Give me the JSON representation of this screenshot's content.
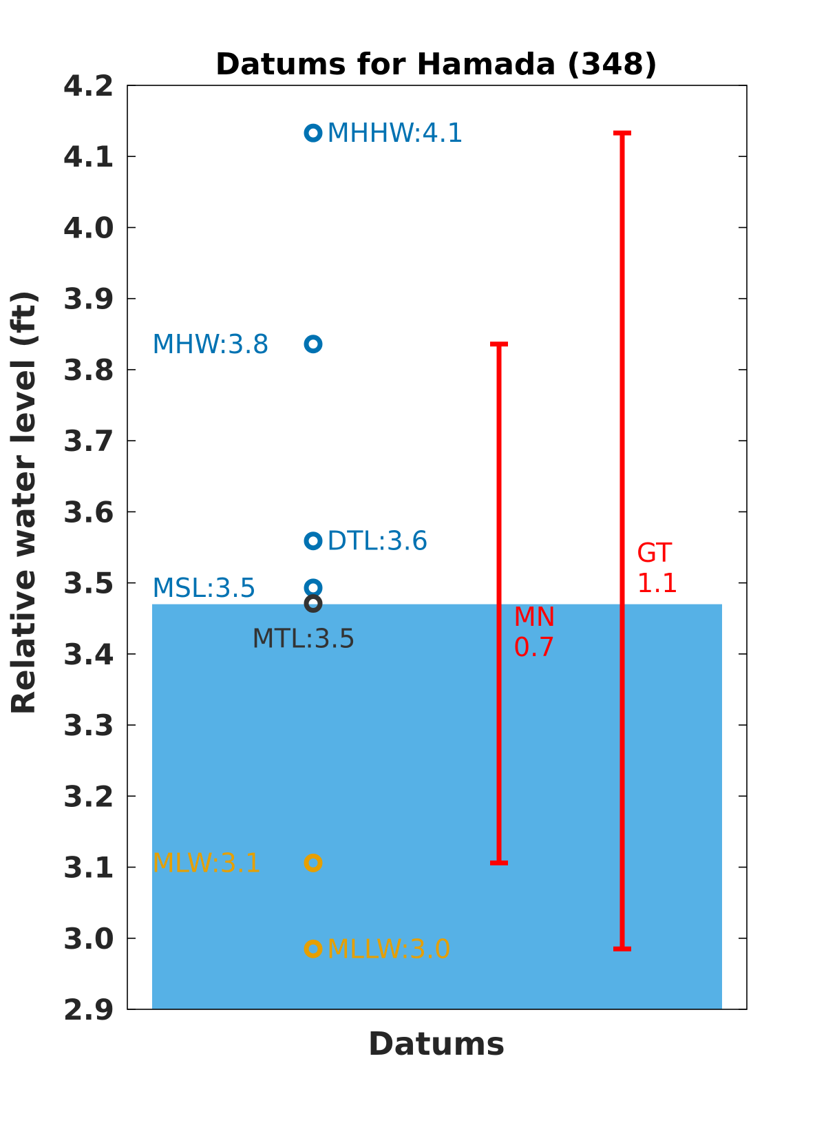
{
  "chart_data": {
    "type": "scatter",
    "title": "Datums for Hamada (348)",
    "xlabel": "Datums",
    "ylabel": "Relative water level (ft)",
    "ylim": [
      2.9,
      4.2
    ],
    "yticks": [
      "2.9",
      "3.0",
      "3.1",
      "3.2",
      "3.3",
      "3.4",
      "3.5",
      "3.6",
      "3.7",
      "3.8",
      "3.9",
      "4.0",
      "4.1",
      "4.2"
    ],
    "water_fill": {
      "from": 2.9,
      "to": 3.47,
      "color": "#56B1E6"
    },
    "datums": [
      {
        "name": "MHHW",
        "value": 4.133,
        "label": "MHHW:4.1",
        "color": "#0072B2",
        "label_side": "right"
      },
      {
        "name": "MHW",
        "value": 3.836,
        "label": "MHW:3.8",
        "color": "#0072B2",
        "label_side": "left"
      },
      {
        "name": "DTL",
        "value": 3.559,
        "label": "DTL:3.6",
        "color": "#0072B2",
        "label_side": "right"
      },
      {
        "name": "MSL",
        "value": 3.493,
        "label": "MSL:3.5",
        "color": "#0072B2",
        "label_side": "left"
      },
      {
        "name": "MTL",
        "value": 3.471,
        "label": "MTL:3.5",
        "color": "#333333",
        "label_side": "below"
      },
      {
        "name": "MLW",
        "value": 3.106,
        "label": "MLW:3.1",
        "color": "#E69F00",
        "label_side": "left"
      },
      {
        "name": "MLLW",
        "value": 2.985,
        "label": "MLLW:3.0",
        "color": "#E69F00",
        "label_side": "right"
      }
    ],
    "ranges": [
      {
        "name": "MN",
        "value": "0.7",
        "from": 3.106,
        "to": 3.836,
        "color": "#FF0000"
      },
      {
        "name": "GT",
        "value": "1.1",
        "from": 2.985,
        "to": 4.133,
        "color": "#FF0000"
      }
    ]
  }
}
